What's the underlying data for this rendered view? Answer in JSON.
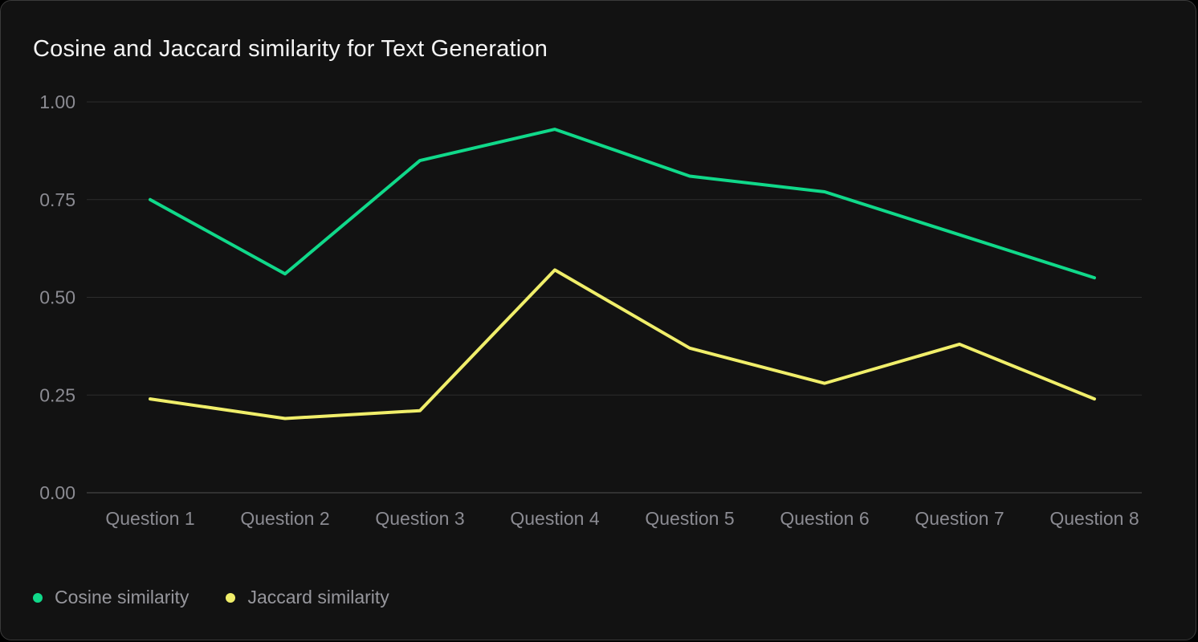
{
  "title": "Cosine and Jaccard similarity for Text Generation",
  "chart_data": {
    "type": "line",
    "title": "Cosine and Jaccard similarity for Text Generation",
    "categories": [
      "Question 1",
      "Question 2",
      "Question 3",
      "Question 4",
      "Question 5",
      "Question 6",
      "Question 7",
      "Question 8"
    ],
    "series": [
      {
        "name": "Cosine similarity",
        "color": "#10d98a",
        "values": [
          0.75,
          0.56,
          0.85,
          0.93,
          0.81,
          0.77,
          0.66,
          0.55
        ]
      },
      {
        "name": "Jaccard similarity",
        "color": "#f0ee6a",
        "values": [
          0.24,
          0.19,
          0.21,
          0.57,
          0.37,
          0.28,
          0.38,
          0.24
        ]
      }
    ],
    "xlabel": "",
    "ylabel": "",
    "ylim": [
      0.0,
      1.0
    ],
    "yticks": [
      0.0,
      0.25,
      0.5,
      0.75,
      1.0
    ],
    "ytick_labels": [
      "0.00",
      "0.25",
      "0.50",
      "0.75",
      "1.00"
    ],
    "grid": true,
    "legend_position": "bottom-left",
    "background": "#121212",
    "text_color": "#8b8b92",
    "title_color": "#f4f4f4"
  }
}
